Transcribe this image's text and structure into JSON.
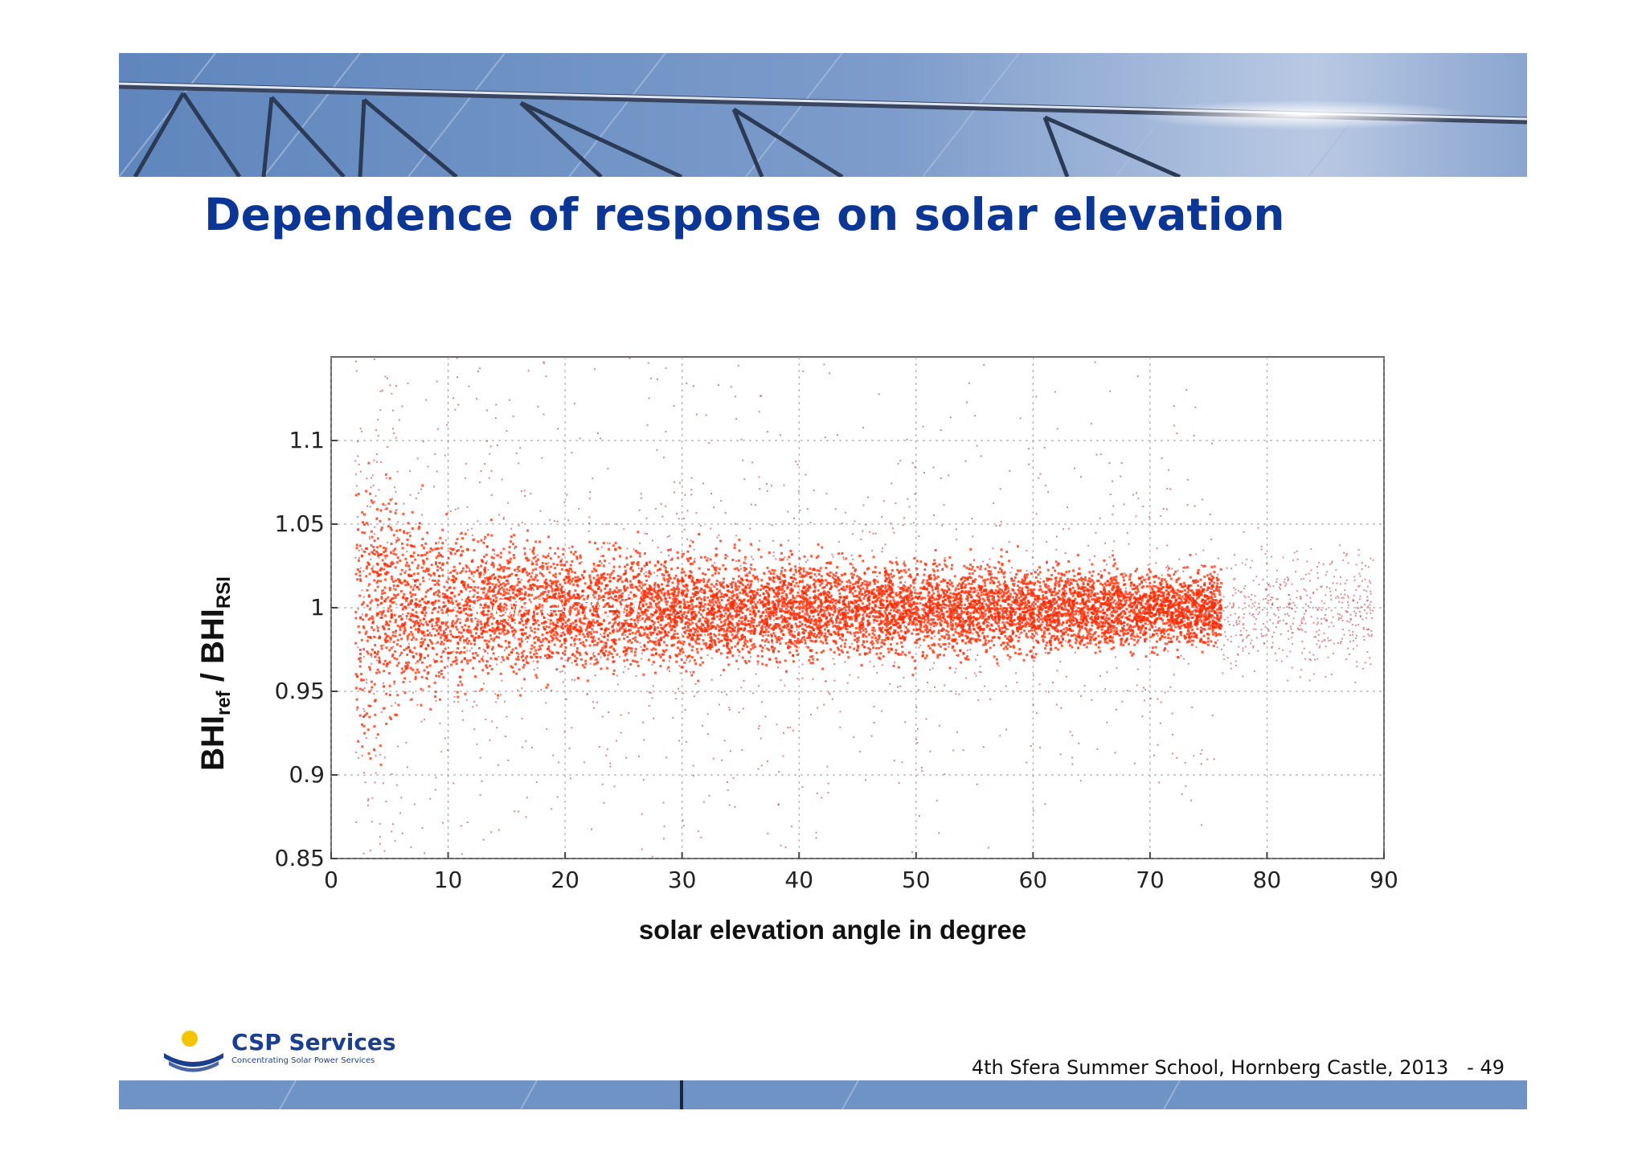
{
  "slide": {
    "title": "Dependence of response on solar elevation",
    "footer": "4th Sfera Summer School, Hornberg Castle, 2013",
    "page_number": "- 49"
  },
  "logo": {
    "name": "CSP Services",
    "tagline": "Concentrating Solar Power Services"
  },
  "colors": {
    "title": "#0b3695",
    "points_dense": "#ff2a00",
    "points_sparse": "#c4323c",
    "banner_sky": "#6f93c4"
  },
  "chart_data": {
    "type": "scatter",
    "xlabel": "solar elevation angle in degree",
    "ylabel_main": "BHI",
    "ylabel_sub1": "ref",
    "ylabel_sep": " / ",
    "ylabel_sub2": "RSI",
    "annotation": "corrected",
    "xlim": [
      0,
      90
    ],
    "ylim": [
      0.85,
      1.15
    ],
    "xticks": [
      0,
      10,
      20,
      30,
      40,
      50,
      60,
      70,
      80,
      90
    ],
    "yticks": [
      0.85,
      0.9,
      0.95,
      1,
      1.05,
      1.1
    ],
    "ytick_labels": [
      "0.85",
      "0.9",
      "0.95",
      "1",
      "1.05",
      "1.1"
    ],
    "grid": true,
    "series": [
      {
        "elevation_range": [
          2,
          76
        ],
        "center": 1.0,
        "core_halfwidth": [
          {
            "x": 3,
            "y": 0.07
          },
          {
            "x": 6,
            "y": 0.05
          },
          {
            "x": 10,
            "y": 0.04
          },
          {
            "x": 20,
            "y": 0.03
          },
          {
            "x": 40,
            "y": 0.025
          },
          {
            "x": 60,
            "y": 0.022
          },
          {
            "x": 76,
            "y": 0.02
          }
        ]
      },
      {
        "elevation_range": [
          76,
          89
        ],
        "center": 1.0,
        "core_halfwidth": [
          {
            "x": 76,
            "y": 0.03
          },
          {
            "x": 89,
            "y": 0.03
          }
        ]
      }
    ]
  }
}
